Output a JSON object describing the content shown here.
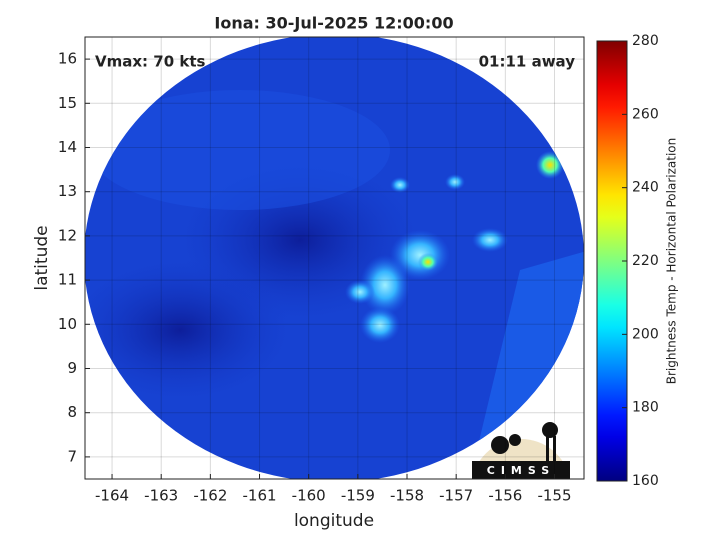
{
  "chart_data": {
    "type": "image",
    "title": "Iona: 30-Jul-2025 12:00:00",
    "annotations": [
      "Vmax: 70 kts",
      "01:11 away"
    ],
    "xlabel": "longitude",
    "ylabel": "latitude",
    "xlim": [
      -164.55,
      -154.4
    ],
    "ylim": [
      6.5,
      16.5
    ],
    "xticks": [
      -164,
      -163,
      -162,
      -161,
      -160,
      -159,
      -158,
      -157,
      -156,
      -155
    ],
    "yticks": [
      7,
      8,
      9,
      10,
      11,
      12,
      13,
      14,
      15,
      16
    ],
    "grid": true,
    "colorbar": {
      "label": "Brightness Temp - Horizontal Polarization",
      "colormap": "jet",
      "lim": [
        160,
        280
      ],
      "ticks": [
        160,
        180,
        200,
        220,
        240,
        260,
        280
      ]
    },
    "logo_text": "CIMSS"
  }
}
